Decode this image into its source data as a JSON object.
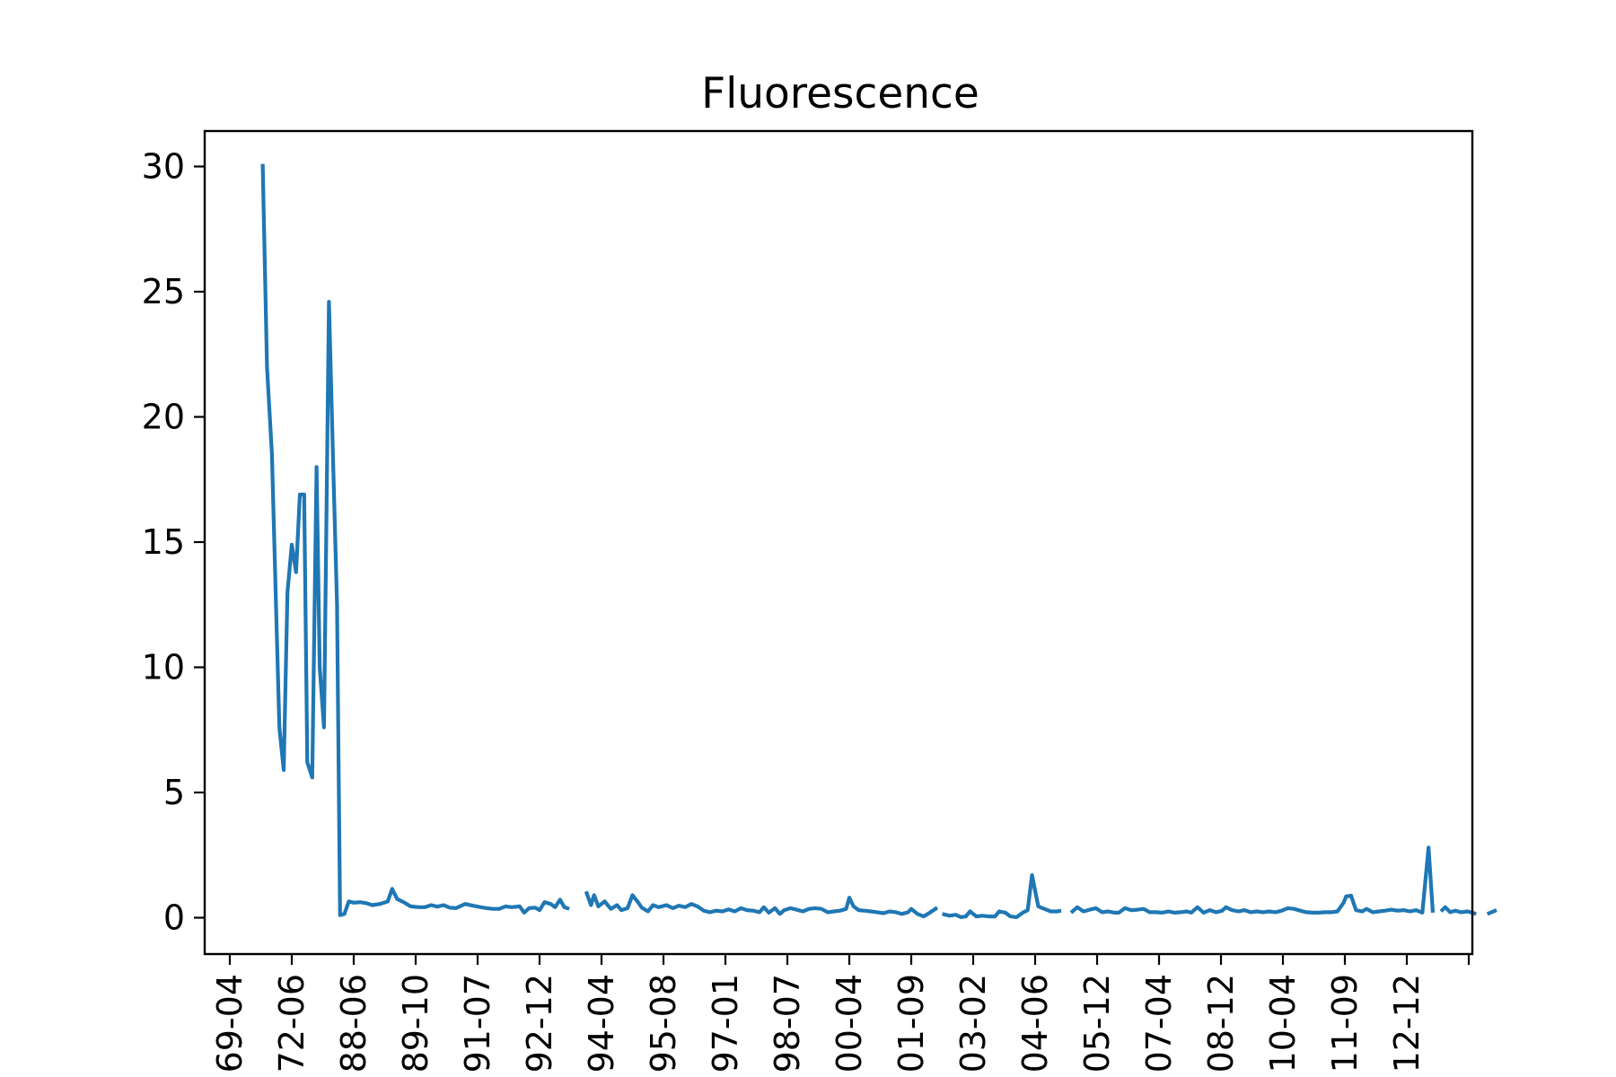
{
  "chart_data": {
    "type": "line",
    "title": "Fluorescence",
    "xlabel": "",
    "ylabel": "",
    "ylim": [
      -1.4,
      31.5
    ],
    "y_ticks": [
      0,
      5,
      10,
      15,
      20,
      25,
      30
    ],
    "grid": false,
    "legend": "none",
    "x_tick_labels": [
      "69-04",
      "72-06",
      "88-06",
      "89-10",
      "91-07",
      "92-12",
      "94-04",
      "95-08",
      "97-01",
      "98-07",
      "00-04",
      "01-09",
      "03-02",
      "04-06",
      "05-12",
      "07-04",
      "08-12",
      "10-04",
      "11-09",
      "12-12"
    ],
    "x_range_ticks": [
      -0.4,
      20.0
    ],
    "series": [
      {
        "color": "#1f77b4",
        "segments": [
          [
            [
              0.53,
              30.1
            ],
            [
              0.6,
              22.0
            ],
            [
              0.68,
              18.5
            ],
            [
              0.75,
              12.0
            ],
            [
              0.8,
              7.6
            ],
            [
              0.87,
              5.9
            ],
            [
              0.93,
              13.0
            ],
            [
              1.0,
              14.9
            ],
            [
              1.07,
              13.8
            ],
            [
              1.13,
              16.9
            ],
            [
              1.2,
              16.9
            ],
            [
              1.25,
              6.2
            ],
            [
              1.33,
              5.6
            ],
            [
              1.4,
              18.0
            ],
            [
              1.45,
              10.0
            ],
            [
              1.52,
              7.6
            ],
            [
              1.6,
              24.6
            ],
            [
              1.67,
              18.0
            ],
            [
              1.73,
              12.5
            ],
            [
              1.78,
              0.1
            ],
            [
              1.85,
              0.15
            ],
            [
              1.92,
              0.65
            ],
            [
              2.0,
              0.6
            ],
            [
              2.1,
              0.62
            ],
            [
              2.2,
              0.58
            ],
            [
              2.3,
              0.5
            ],
            [
              2.42,
              0.55
            ],
            [
              2.55,
              0.65
            ],
            [
              2.62,
              1.15
            ],
            [
              2.7,
              0.75
            ],
            [
              2.82,
              0.6
            ],
            [
              2.92,
              0.45
            ],
            [
              3.05,
              0.42
            ],
            [
              3.15,
              0.42
            ],
            [
              3.25,
              0.5
            ],
            [
              3.35,
              0.44
            ],
            [
              3.45,
              0.5
            ],
            [
              3.55,
              0.4
            ],
            [
              3.65,
              0.38
            ],
            [
              3.8,
              0.55
            ],
            [
              3.92,
              0.48
            ],
            [
              4.05,
              0.42
            ],
            [
              4.15,
              0.38
            ],
            [
              4.25,
              0.35
            ],
            [
              4.35,
              0.35
            ],
            [
              4.45,
              0.45
            ],
            [
              4.55,
              0.42
            ],
            [
              4.68,
              0.45
            ],
            [
              4.75,
              0.2
            ],
            [
              4.83,
              0.38
            ],
            [
              4.93,
              0.4
            ],
            [
              5.0,
              0.3
            ],
            [
              5.08,
              0.62
            ],
            [
              5.18,
              0.55
            ],
            [
              5.25,
              0.42
            ],
            [
              5.33,
              0.72
            ],
            [
              5.4,
              0.42
            ],
            [
              5.48,
              0.35
            ]
          ],
          [
            [
              5.75,
              1.05
            ],
            [
              5.83,
              0.5
            ],
            [
              5.88,
              0.9
            ],
            [
              5.95,
              0.45
            ],
            [
              6.05,
              0.65
            ],
            [
              6.15,
              0.35
            ],
            [
              6.25,
              0.5
            ],
            [
              6.32,
              0.3
            ],
            [
              6.42,
              0.38
            ],
            [
              6.5,
              0.9
            ],
            [
              6.58,
              0.65
            ],
            [
              6.65,
              0.4
            ],
            [
              6.75,
              0.25
            ],
            [
              6.83,
              0.5
            ],
            [
              6.92,
              0.42
            ],
            [
              7.05,
              0.5
            ],
            [
              7.15,
              0.38
            ],
            [
              7.25,
              0.48
            ],
            [
              7.35,
              0.42
            ],
            [
              7.45,
              0.55
            ],
            [
              7.55,
              0.45
            ],
            [
              7.65,
              0.28
            ],
            [
              7.75,
              0.22
            ],
            [
              7.85,
              0.28
            ],
            [
              7.95,
              0.25
            ],
            [
              8.05,
              0.33
            ],
            [
              8.15,
              0.25
            ],
            [
              8.25,
              0.38
            ],
            [
              8.35,
              0.3
            ],
            [
              8.45,
              0.28
            ],
            [
              8.55,
              0.22
            ],
            [
              8.62,
              0.42
            ],
            [
              8.7,
              0.2
            ],
            [
              8.8,
              0.38
            ],
            [
              8.88,
              0.15
            ],
            [
              8.95,
              0.3
            ],
            [
              9.05,
              0.38
            ],
            [
              9.15,
              0.32
            ],
            [
              9.25,
              0.25
            ],
            [
              9.35,
              0.35
            ],
            [
              9.45,
              0.38
            ],
            [
              9.55,
              0.35
            ],
            [
              9.65,
              0.22
            ],
            [
              9.75,
              0.25
            ],
            [
              9.85,
              0.28
            ],
            [
              9.95,
              0.35
            ],
            [
              10.0,
              0.8
            ],
            [
              10.07,
              0.45
            ],
            [
              10.15,
              0.3
            ],
            [
              10.25,
              0.28
            ],
            [
              10.35,
              0.25
            ],
            [
              10.45,
              0.22
            ],
            [
              10.55,
              0.18
            ],
            [
              10.65,
              0.25
            ],
            [
              10.75,
              0.22
            ],
            [
              10.85,
              0.15
            ],
            [
              10.95,
              0.22
            ],
            [
              11.0,
              0.35
            ],
            [
              11.1,
              0.15
            ],
            [
              11.2,
              0.05
            ],
            [
              11.3,
              0.2
            ],
            [
              11.42,
              0.4
            ]
          ],
          [
            [
              11.5,
              0.15
            ],
            [
              11.62,
              0.08
            ],
            [
              11.72,
              0.12
            ],
            [
              11.8,
              0.02
            ],
            [
              11.88,
              0.05
            ],
            [
              11.95,
              0.25
            ],
            [
              12.05,
              0.05
            ],
            [
              12.15,
              0.08
            ],
            [
              12.25,
              0.05
            ],
            [
              12.35,
              0.05
            ],
            [
              12.42,
              0.25
            ],
            [
              12.52,
              0.2
            ],
            [
              12.6,
              0.05
            ],
            [
              12.7,
              0.02
            ],
            [
              12.8,
              0.2
            ],
            [
              12.88,
              0.3
            ],
            [
              12.95,
              1.7
            ],
            [
              13.05,
              0.45
            ],
            [
              13.15,
              0.35
            ],
            [
              13.25,
              0.25
            ],
            [
              13.35,
              0.25
            ],
            [
              13.42,
              0.28
            ]
          ],
          [
            [
              13.58,
              0.2
            ],
            [
              13.68,
              0.42
            ],
            [
              13.78,
              0.25
            ],
            [
              13.88,
              0.32
            ],
            [
              13.98,
              0.38
            ],
            [
              14.08,
              0.22
            ],
            [
              14.18,
              0.25
            ],
            [
              14.28,
              0.2
            ],
            [
              14.35,
              0.2
            ],
            [
              14.45,
              0.38
            ],
            [
              14.55,
              0.3
            ],
            [
              14.65,
              0.32
            ],
            [
              14.75,
              0.35
            ],
            [
              14.85,
              0.22
            ],
            [
              14.95,
              0.22
            ],
            [
              15.05,
              0.2
            ],
            [
              15.15,
              0.25
            ],
            [
              15.25,
              0.2
            ],
            [
              15.35,
              0.22
            ],
            [
              15.45,
              0.25
            ],
            [
              15.52,
              0.2
            ],
            [
              15.62,
              0.42
            ],
            [
              15.72,
              0.2
            ],
            [
              15.82,
              0.3
            ],
            [
              15.92,
              0.22
            ],
            [
              16.02,
              0.28
            ],
            [
              16.08,
              0.42
            ],
            [
              16.18,
              0.3
            ],
            [
              16.28,
              0.25
            ],
            [
              16.38,
              0.3
            ],
            [
              16.48,
              0.22
            ],
            [
              16.58,
              0.25
            ],
            [
              16.68,
              0.22
            ],
            [
              16.78,
              0.25
            ],
            [
              16.88,
              0.22
            ],
            [
              16.98,
              0.28
            ],
            [
              17.08,
              0.38
            ],
            [
              17.18,
              0.35
            ],
            [
              17.28,
              0.28
            ],
            [
              17.38,
              0.22
            ],
            [
              17.48,
              0.2
            ],
            [
              17.58,
              0.2
            ],
            [
              17.68,
              0.22
            ],
            [
              17.78,
              0.22
            ],
            [
              17.88,
              0.25
            ],
            [
              17.98,
              0.6
            ],
            [
              18.02,
              0.85
            ],
            [
              18.1,
              0.88
            ],
            [
              18.18,
              0.3
            ],
            [
              18.28,
              0.25
            ],
            [
              18.35,
              0.35
            ],
            [
              18.45,
              0.22
            ],
            [
              18.55,
              0.25
            ],
            [
              18.65,
              0.28
            ],
            [
              18.75,
              0.32
            ],
            [
              18.85,
              0.28
            ],
            [
              18.95,
              0.3
            ],
            [
              19.05,
              0.25
            ],
            [
              19.15,
              0.3
            ],
            [
              19.25,
              0.2
            ],
            [
              19.35,
              2.8
            ],
            [
              19.42,
              0.2
            ]
          ],
          [
            [
              19.55,
              0.25
            ],
            [
              19.62,
              0.42
            ],
            [
              19.7,
              0.22
            ],
            [
              19.78,
              0.28
            ],
            [
              19.88,
              0.22
            ],
            [
              19.98,
              0.25
            ],
            [
              20.05,
              0.2
            ],
            [
              20.12,
              0.15
            ]
          ],
          [
            [
              20.3,
              0.15
            ],
            [
              20.45,
              0.3
            ]
          ]
        ]
      }
    ]
  }
}
